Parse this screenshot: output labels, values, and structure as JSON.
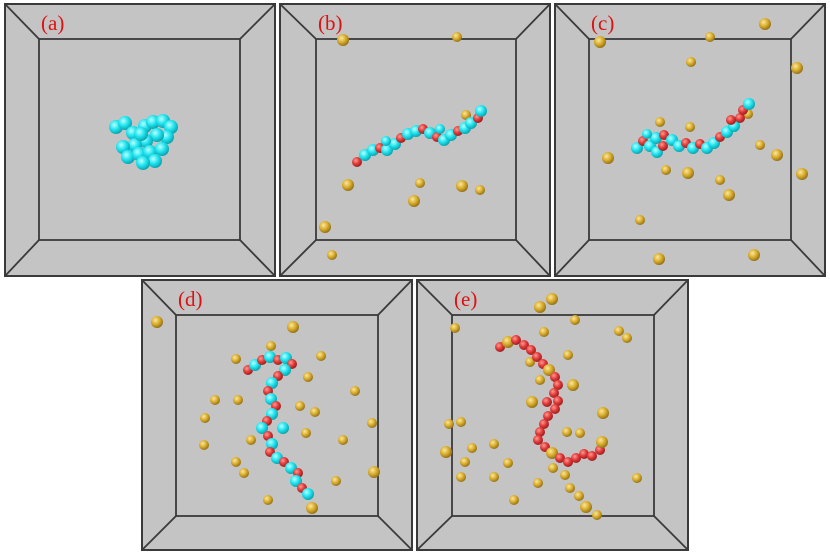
{
  "colors": {
    "box_fill": "#c4c4c4",
    "box_edge": "#3a3a3a",
    "label": "#e01010",
    "cyan_bead": "#1ee3ee",
    "red_bead": "#e03a3a",
    "gold_bead": "#d4a92a"
  },
  "panels": [
    {
      "id": "a",
      "label": "(a)"
    },
    {
      "id": "b",
      "label": "(b)"
    },
    {
      "id": "c",
      "label": "(c)"
    },
    {
      "id": "d",
      "label": "(d)"
    },
    {
      "id": "e",
      "label": "(e)"
    }
  ]
}
